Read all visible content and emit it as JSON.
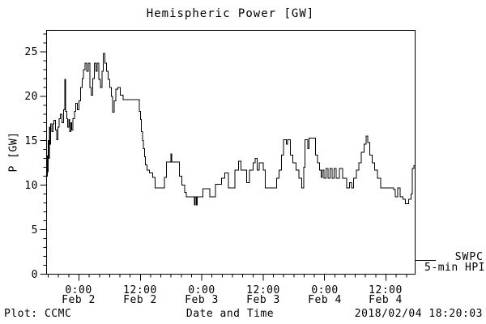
{
  "title": "Hemispheric Power [GW]",
  "y_axis": {
    "label": "P [GW]"
  },
  "x_axis": {
    "label": "Date and Time"
  },
  "legend": {
    "line1": "SWPC",
    "line2": "5-min HPI"
  },
  "footer": {
    "left": "Plot: CCMC",
    "center": "Date and Time",
    "right": "2018/02/04 18:20:03"
  },
  "colors": {
    "foreground": "#000000",
    "background": "#ffffff"
  },
  "chart_data": {
    "type": "line",
    "line_style": "step",
    "title": "Hemispheric Power [GW]",
    "xlabel": "Date and Time",
    "ylabel": "P [GW]",
    "x_unit": "hours from 2018-02-02 00:00",
    "xlim": [
      -6.33,
      65.7
    ],
    "ylim": [
      0,
      27.4
    ],
    "grid": false,
    "legend_position": "outside-right-bottom",
    "y_major_ticks": [
      0,
      5,
      10,
      15,
      20,
      25
    ],
    "y_minor_step": 1,
    "x_minor_step_hours": 2,
    "x_major_ticks": [
      {
        "hour": 0,
        "time": "0:00",
        "date": "Feb 2"
      },
      {
        "hour": 12,
        "time": "12:00",
        "date": "Feb 2"
      },
      {
        "hour": 24,
        "time": "0:00",
        "date": "Feb 3"
      },
      {
        "hour": 36,
        "time": "12:00",
        "date": "Feb 3"
      },
      {
        "hour": 48,
        "time": "0:00",
        "date": "Feb 4"
      },
      {
        "hour": 60,
        "time": "12:00",
        "date": "Feb 4"
      }
    ],
    "series": [
      {
        "name": "SWPC 5-min HPI",
        "color": "#000000",
        "points": [
          [
            -6.33,
            11.0
          ],
          [
            -6.2,
            13.3
          ],
          [
            -6.1,
            11.5
          ],
          [
            -6.0,
            15.0
          ],
          [
            -5.9,
            13.0
          ],
          [
            -5.8,
            16.5
          ],
          [
            -5.65,
            14.6
          ],
          [
            -5.5,
            16.9
          ],
          [
            -5.3,
            16.0
          ],
          [
            -5.1,
            16.9
          ],
          [
            -4.9,
            17.3
          ],
          [
            -4.6,
            16.2
          ],
          [
            -4.35,
            15.1
          ],
          [
            -4.1,
            16.5
          ],
          [
            -3.85,
            17.5
          ],
          [
            -3.6,
            18.0
          ],
          [
            -3.3,
            17.0
          ],
          [
            -3.0,
            18.5
          ],
          [
            -2.75,
            21.9
          ],
          [
            -2.6,
            18.3
          ],
          [
            -2.4,
            17.5
          ],
          [
            -2.2,
            16.5
          ],
          [
            -2.0,
            17.4
          ],
          [
            -1.8,
            16.0
          ],
          [
            -1.6,
            17.0
          ],
          [
            -1.4,
            16.2
          ],
          [
            -1.2,
            17.5
          ],
          [
            -0.9,
            18.3
          ],
          [
            -0.6,
            19.2
          ],
          [
            -0.3,
            18.5
          ],
          [
            0.0,
            19.5
          ],
          [
            0.3,
            21.0
          ],
          [
            0.6,
            22.0
          ],
          [
            0.9,
            23.0
          ],
          [
            1.2,
            23.7
          ],
          [
            1.5,
            22.8
          ],
          [
            1.8,
            23.7
          ],
          [
            2.1,
            21.0
          ],
          [
            2.35,
            20.1
          ],
          [
            2.7,
            22.0
          ],
          [
            3.0,
            23.7
          ],
          [
            3.3,
            22.8
          ],
          [
            3.6,
            23.7
          ],
          [
            3.9,
            21.9
          ],
          [
            4.2,
            21.0
          ],
          [
            4.5,
            22.8
          ],
          [
            4.75,
            24.8
          ],
          [
            5.1,
            23.7
          ],
          [
            5.4,
            22.8
          ],
          [
            5.7,
            21.9
          ],
          [
            6.0,
            21.0
          ],
          [
            6.3,
            20.0
          ],
          [
            6.6,
            18.2
          ],
          [
            6.9,
            19.5
          ],
          [
            7.2,
            20.8
          ],
          [
            7.6,
            21.0
          ],
          [
            8.1,
            20.1
          ],
          [
            8.6,
            19.6
          ],
          [
            11.6,
            19.6
          ],
          [
            11.8,
            18.3
          ],
          [
            12.0,
            17.4
          ],
          [
            12.2,
            16.0
          ],
          [
            12.4,
            15.0
          ],
          [
            12.6,
            14.1
          ],
          [
            12.8,
            13.2
          ],
          [
            13.0,
            12.3
          ],
          [
            13.3,
            11.7
          ],
          [
            13.8,
            11.4
          ],
          [
            14.4,
            10.9
          ],
          [
            14.9,
            9.7
          ],
          [
            16.4,
            9.7
          ],
          [
            16.7,
            10.9
          ],
          [
            17.1,
            12.6
          ],
          [
            17.8,
            12.6
          ],
          [
            17.95,
            13.5
          ],
          [
            18.1,
            12.6
          ],
          [
            19.2,
            12.6
          ],
          [
            19.6,
            11.0
          ],
          [
            20.1,
            10.0
          ],
          [
            20.7,
            9.2
          ],
          [
            21.0,
            8.7
          ],
          [
            22.6,
            7.8
          ],
          [
            22.75,
            8.7
          ],
          [
            22.95,
            7.8
          ],
          [
            23.1,
            8.7
          ],
          [
            24.2,
            9.6
          ],
          [
            25.6,
            8.7
          ],
          [
            26.7,
            10.1
          ],
          [
            27.9,
            10.8
          ],
          [
            28.5,
            11.4
          ],
          [
            29.2,
            9.7
          ],
          [
            30.5,
            11.7
          ],
          [
            31.2,
            12.7
          ],
          [
            31.7,
            11.7
          ],
          [
            32.8,
            10.3
          ],
          [
            33.3,
            11.7
          ],
          [
            34.0,
            12.5
          ],
          [
            34.4,
            13.0
          ],
          [
            34.8,
            11.7
          ],
          [
            35.2,
            12.5
          ],
          [
            36.0,
            11.7
          ],
          [
            36.4,
            9.7
          ],
          [
            38.2,
            9.7
          ],
          [
            38.6,
            10.8
          ],
          [
            39.1,
            11.7
          ],
          [
            39.6,
            13.4
          ],
          [
            40.0,
            15.1
          ],
          [
            40.5,
            14.6
          ],
          [
            40.8,
            15.1
          ],
          [
            41.3,
            13.4
          ],
          [
            41.8,
            12.5
          ],
          [
            42.4,
            11.7
          ],
          [
            43.0,
            10.8
          ],
          [
            43.5,
            9.7
          ],
          [
            43.9,
            12.0
          ],
          [
            44.2,
            15.1
          ],
          [
            44.7,
            14.1
          ],
          [
            45.0,
            15.3
          ],
          [
            45.9,
            15.3
          ],
          [
            46.2,
            13.4
          ],
          [
            46.6,
            12.5
          ],
          [
            47.0,
            11.7
          ],
          [
            47.3,
            10.9
          ],
          [
            47.6,
            11.7
          ],
          [
            47.9,
            10.8
          ],
          [
            48.3,
            11.9
          ],
          [
            48.7,
            10.8
          ],
          [
            49.1,
            11.9
          ],
          [
            49.5,
            10.8
          ],
          [
            49.9,
            11.9
          ],
          [
            50.3,
            10.8
          ],
          [
            50.9,
            11.9
          ],
          [
            51.5,
            10.8
          ],
          [
            52.3,
            9.7
          ],
          [
            52.9,
            10.3
          ],
          [
            53.3,
            9.7
          ],
          [
            53.7,
            10.8
          ],
          [
            54.2,
            11.7
          ],
          [
            54.7,
            12.5
          ],
          [
            55.2,
            13.7
          ],
          [
            55.7,
            14.6
          ],
          [
            56.1,
            15.5
          ],
          [
            56.4,
            14.8
          ],
          [
            56.8,
            13.4
          ],
          [
            57.3,
            12.5
          ],
          [
            57.8,
            11.7
          ],
          [
            58.3,
            10.8
          ],
          [
            59.0,
            9.7
          ],
          [
            61.5,
            9.5
          ],
          [
            61.8,
            8.7
          ],
          [
            62.3,
            9.7
          ],
          [
            62.8,
            8.7
          ],
          [
            63.3,
            8.4
          ],
          [
            63.8,
            7.9
          ],
          [
            64.4,
            8.4
          ],
          [
            64.9,
            9.0
          ],
          [
            65.15,
            11.9
          ],
          [
            65.45,
            12.2
          ],
          [
            65.7,
            12.3
          ]
        ]
      }
    ]
  }
}
